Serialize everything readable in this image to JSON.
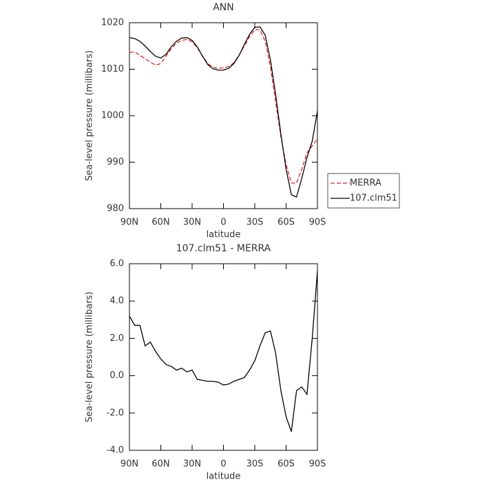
{
  "chart_data": [
    {
      "type": "line",
      "title": "ANN",
      "xlabel": "latitude",
      "ylabel": "Sea-level pressure (millibars)",
      "x": [
        90,
        85,
        80,
        75,
        70,
        65,
        60,
        55,
        50,
        45,
        40,
        35,
        30,
        25,
        20,
        15,
        10,
        5,
        0,
        -5,
        -10,
        -15,
        -20,
        -25,
        -30,
        -35,
        -40,
        -45,
        -50,
        -55,
        -60,
        -65,
        -70,
        -75,
        -80,
        -85,
        -90
      ],
      "xlim": [
        90,
        -90
      ],
      "xticks": [
        {
          "value": 90,
          "label": "90N"
        },
        {
          "value": 60,
          "label": "60N"
        },
        {
          "value": 30,
          "label": "30N"
        },
        0,
        {
          "value": -30,
          "label": "30S"
        },
        {
          "value": -60,
          "label": "60S"
        },
        {
          "value": -90,
          "label": "90S"
        }
      ],
      "ylim": [
        980,
        1020
      ],
      "yticks": [
        980,
        990,
        1000,
        1010,
        1020
      ],
      "legend": "right",
      "series": [
        {
          "name": "MERRA",
          "color": "#e8201c",
          "dashed": true,
          "values": [
            1013.6,
            1013.7,
            1013.0,
            1012.3,
            1011.5,
            1010.9,
            1011.2,
            1012.8,
            1014.4,
            1015.6,
            1016.2,
            1016.4,
            1015.9,
            1014.6,
            1012.8,
            1011.2,
            1010.4,
            1010.2,
            1010.3,
            1010.6,
            1011.4,
            1013.0,
            1015.0,
            1017.0,
            1018.5,
            1018.5,
            1016.0,
            1010.5,
            1003.0,
            995.5,
            989.5,
            985.5,
            985.5,
            988.5,
            992.0,
            993.5,
            995.0
          ]
        },
        {
          "name": "107.clm51",
          "color": "#000000",
          "dashed": false,
          "values": [
            1016.8,
            1016.6,
            1016.0,
            1015.0,
            1013.8,
            1012.8,
            1012.4,
            1013.2,
            1014.8,
            1016.0,
            1016.7,
            1016.8,
            1016.2,
            1014.8,
            1012.8,
            1011.0,
            1010.1,
            1009.8,
            1009.8,
            1010.2,
            1011.2,
            1013.0,
            1015.3,
            1017.5,
            1019.0,
            1019.1,
            1017.3,
            1012.0,
            1004.5,
            996.0,
            988.5,
            983.0,
            982.5,
            986.5,
            991.0,
            994.5,
            1001.0
          ]
        }
      ]
    },
    {
      "type": "line",
      "title": "107.clm51 - MERRA",
      "xlabel": "latitude",
      "ylabel": "Sea-level pressure (millibars)",
      "x": [
        90,
        85,
        80,
        75,
        70,
        65,
        60,
        55,
        50,
        45,
        40,
        35,
        30,
        25,
        20,
        15,
        10,
        5,
        0,
        -5,
        -10,
        -15,
        -20,
        -25,
        -30,
        -35,
        -40,
        -45,
        -50,
        -55,
        -60,
        -65,
        -70,
        -75,
        -80,
        -85,
        -90
      ],
      "xlim": [
        90,
        -90
      ],
      "xticks": [
        {
          "value": 90,
          "label": "90N"
        },
        {
          "value": 60,
          "label": "60N"
        },
        {
          "value": 30,
          "label": "30N"
        },
        0,
        {
          "value": -30,
          "label": "30S"
        },
        {
          "value": -60,
          "label": "60S"
        },
        {
          "value": -90,
          "label": "90S"
        }
      ],
      "ylim": [
        -4,
        6
      ],
      "yticks": [
        {
          "value": -4,
          "label": "-4.0"
        },
        {
          "value": -2,
          "label": "-2.0"
        },
        {
          "value": 0,
          "label": "0.0"
        },
        {
          "value": 2,
          "label": "2.0"
        },
        {
          "value": 4,
          "label": "4.0"
        },
        {
          "value": 6,
          "label": "6.0"
        }
      ],
      "series": [
        {
          "color": "#000000",
          "dashed": false,
          "values": [
            3.2,
            2.7,
            2.7,
            1.6,
            1.8,
            1.3,
            0.9,
            0.6,
            0.5,
            0.3,
            0.4,
            0.2,
            0.3,
            -0.2,
            -0.25,
            -0.3,
            -0.3,
            -0.35,
            -0.5,
            -0.45,
            -0.3,
            -0.2,
            -0.1,
            0.3,
            0.8,
            1.6,
            2.3,
            2.4,
            1.2,
            -0.8,
            -2.2,
            -3.0,
            -0.8,
            -0.6,
            -1.0,
            2.0,
            5.6
          ]
        }
      ]
    }
  ]
}
